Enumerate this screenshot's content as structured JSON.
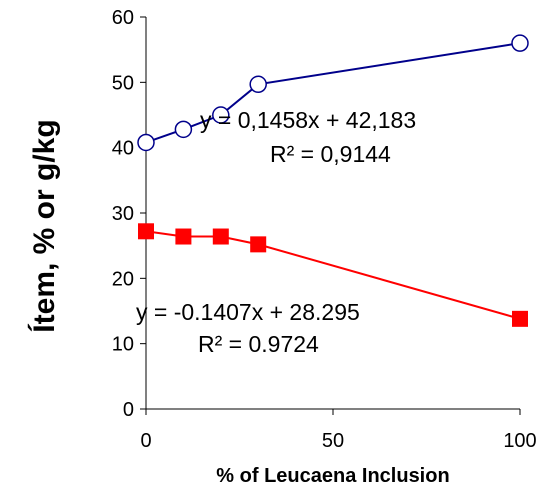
{
  "chart_data": {
    "type": "scatter",
    "title": "",
    "xlabel": "% of Leucaena Inclusion",
    "ylabel": "Ítem, % or g/kg",
    "xlim": [
      0,
      100
    ],
    "ylim": [
      0,
      60
    ],
    "xticks": [
      "0",
      "50",
      "100"
    ],
    "yticks": [
      "0",
      "10",
      "20",
      "30",
      "40",
      "50",
      "60"
    ],
    "grid": false,
    "legend": "none",
    "series": [
      {
        "color": "#00008b",
        "marker": "open-circle",
        "x": [
          0,
          10,
          20,
          30,
          100
        ],
        "y": [
          40.8,
          42.8,
          45.0,
          49.7,
          56.0
        ],
        "trendline": {
          "equation": "y = 0,1458x + 42,183",
          "r2": "R² = 0,9144"
        }
      },
      {
        "color": "#ff0000",
        "marker": "filled-square",
        "x": [
          0,
          10,
          20,
          30,
          100
        ],
        "y": [
          27.2,
          26.4,
          26.4,
          25.2,
          13.8
        ],
        "trendline": {
          "equation": "y = -0.1407x + 28.295",
          "r2": "R² = 0.9724"
        }
      }
    ]
  }
}
